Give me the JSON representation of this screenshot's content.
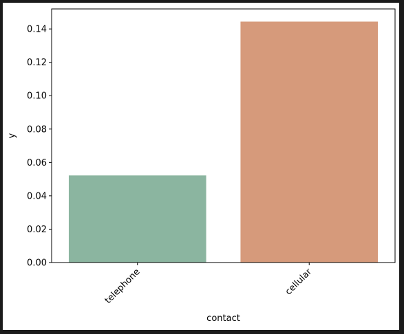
{
  "colors": {
    "window_frame": "#1b1b1b",
    "background": "#ffffff",
    "axis": "#000000",
    "bar_telephone": "#8bb5a0",
    "bar_cellular": "#d69a7b"
  },
  "chart_data": {
    "type": "bar",
    "title": "",
    "xlabel": "contact",
    "ylabel": "y",
    "categories": [
      "telephone",
      "cellular"
    ],
    "values": [
      0.0522,
      0.1444
    ],
    "bar_colors": [
      "#8bb5a0",
      "#d69a7b"
    ],
    "ylim": [
      0,
      0.152
    ],
    "yticks": [
      0.0,
      0.02,
      0.04,
      0.06,
      0.08,
      0.1,
      0.12,
      0.14
    ],
    "ytick_labels": [
      "0.00",
      "0.02",
      "0.04",
      "0.06",
      "0.08",
      "0.10",
      "0.12",
      "0.14"
    ],
    "xtick_rotation_deg": 45,
    "grid": false,
    "legend": false
  }
}
